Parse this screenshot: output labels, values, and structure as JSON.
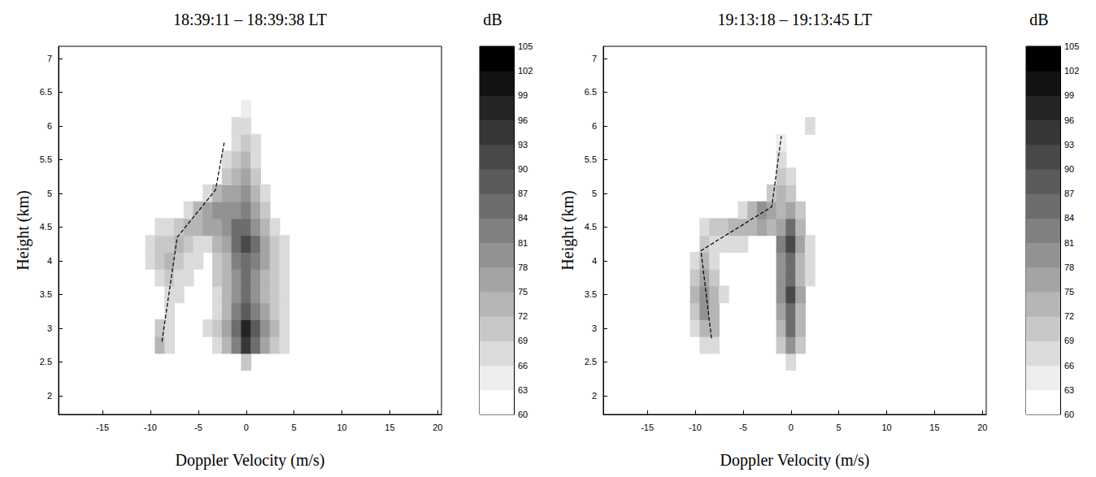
{
  "chart_data": [
    {
      "type": "heatmap",
      "title": "18:39:11 – 18:39:38 LT",
      "x_label": "Doppler Velocity (m/s)",
      "y_label": "Height (km)",
      "xlim": [
        -19.6,
        20.4
      ],
      "ylim": [
        1.72,
        7.18
      ],
      "xticks": [
        -15,
        -10,
        -5,
        0,
        5,
        10,
        15,
        20
      ],
      "yticks": [
        2,
        2.5,
        3,
        3.5,
        4,
        4.5,
        5,
        5.5,
        6,
        6.5,
        7
      ],
      "grid": false,
      "colorbar": {
        "label": "dB",
        "range": [
          60,
          105
        ],
        "ticks": [
          60,
          63,
          66,
          69,
          72,
          75,
          78,
          81,
          84,
          87,
          90,
          93,
          96,
          99,
          102,
          105
        ]
      },
      "cells": [
        [
          0,
          2.5,
          69
        ],
        [
          -9,
          2.75,
          72
        ],
        [
          -8,
          2.75,
          66
        ],
        [
          -3,
          2.75,
          66
        ],
        [
          -2,
          2.75,
          72
        ],
        [
          -1,
          2.75,
          81
        ],
        [
          0,
          2.75,
          93
        ],
        [
          1,
          2.75,
          84
        ],
        [
          2,
          2.75,
          75
        ],
        [
          3,
          2.75,
          69
        ],
        [
          4,
          2.75,
          66
        ],
        [
          -9,
          3,
          69
        ],
        [
          -8,
          3,
          66
        ],
        [
          -4,
          3,
          66
        ],
        [
          -3,
          3,
          69
        ],
        [
          -2,
          3,
          75
        ],
        [
          -1,
          3,
          84
        ],
        [
          0,
          3,
          96
        ],
        [
          1,
          3,
          87
        ],
        [
          2,
          3,
          78
        ],
        [
          3,
          3,
          72
        ],
        [
          4,
          3,
          66
        ],
        [
          -8,
          3.25,
          66
        ],
        [
          -3,
          3.25,
          66
        ],
        [
          -2,
          3.25,
          72
        ],
        [
          -1,
          3.25,
          81
        ],
        [
          0,
          3.25,
          87
        ],
        [
          1,
          3.25,
          81
        ],
        [
          2,
          3.25,
          75
        ],
        [
          3,
          3.25,
          69
        ],
        [
          4,
          3.25,
          66
        ],
        [
          -8,
          3.5,
          66
        ],
        [
          -7,
          3.5,
          66
        ],
        [
          -3,
          3.5,
          66
        ],
        [
          -2,
          3.5,
          72
        ],
        [
          -1,
          3.5,
          78
        ],
        [
          0,
          3.5,
          84
        ],
        [
          1,
          3.5,
          78
        ],
        [
          2,
          3.5,
          72
        ],
        [
          3,
          3.5,
          69
        ],
        [
          4,
          3.5,
          66
        ],
        [
          -9,
          3.75,
          66
        ],
        [
          -8,
          3.75,
          69
        ],
        [
          -7,
          3.75,
          66
        ],
        [
          -6,
          3.75,
          66
        ],
        [
          -3,
          3.75,
          69
        ],
        [
          -2,
          3.75,
          72
        ],
        [
          -1,
          3.75,
          78
        ],
        [
          0,
          3.75,
          84
        ],
        [
          1,
          3.75,
          78
        ],
        [
          2,
          3.75,
          72
        ],
        [
          3,
          3.75,
          69
        ],
        [
          4,
          3.75,
          66
        ],
        [
          -10,
          4,
          66
        ],
        [
          -9,
          4,
          69
        ],
        [
          -8,
          4,
          72
        ],
        [
          -7,
          4,
          69
        ],
        [
          -6,
          4,
          66
        ],
        [
          -5,
          4,
          66
        ],
        [
          -3,
          4,
          69
        ],
        [
          -2,
          4,
          72
        ],
        [
          -1,
          4,
          81
        ],
        [
          0,
          4,
          84
        ],
        [
          1,
          4,
          81
        ],
        [
          2,
          4,
          75
        ],
        [
          3,
          4,
          69
        ],
        [
          4,
          4,
          66
        ],
        [
          -10,
          4.25,
          66
        ],
        [
          -9,
          4.25,
          69
        ],
        [
          -8,
          4.25,
          69
        ],
        [
          -7,
          4.25,
          72
        ],
        [
          -6,
          4.25,
          69
        ],
        [
          -5,
          4.25,
          66
        ],
        [
          -4,
          4.25,
          66
        ],
        [
          -3,
          4.25,
          72
        ],
        [
          -2,
          4.25,
          75
        ],
        [
          -1,
          4.25,
          84
        ],
        [
          0,
          4.25,
          90
        ],
        [
          1,
          4.25,
          84
        ],
        [
          2,
          4.25,
          75
        ],
        [
          3,
          4.25,
          69
        ],
        [
          4,
          4.25,
          66
        ],
        [
          -9,
          4.5,
          66
        ],
        [
          -8,
          4.5,
          66
        ],
        [
          -7,
          4.5,
          69
        ],
        [
          -6,
          4.5,
          72
        ],
        [
          -5,
          4.5,
          72
        ],
        [
          -4,
          4.5,
          75
        ],
        [
          -3,
          4.5,
          75
        ],
        [
          -2,
          4.5,
          78
        ],
        [
          -1,
          4.5,
          84
        ],
        [
          0,
          4.5,
          84
        ],
        [
          1,
          4.5,
          78
        ],
        [
          2,
          4.5,
          72
        ],
        [
          3,
          4.5,
          66
        ],
        [
          -6,
          4.75,
          66
        ],
        [
          -5,
          4.75,
          72
        ],
        [
          -4,
          4.75,
          75
        ],
        [
          -3,
          4.75,
          78
        ],
        [
          -2,
          4.75,
          78
        ],
        [
          -1,
          4.75,
          78
        ],
        [
          0,
          4.75,
          81
        ],
        [
          1,
          4.75,
          75
        ],
        [
          2,
          4.75,
          69
        ],
        [
          -4,
          5,
          66
        ],
        [
          -3,
          5,
          72
        ],
        [
          -2,
          5,
          75
        ],
        [
          -1,
          5,
          75
        ],
        [
          0,
          5,
          78
        ],
        [
          1,
          5,
          72
        ],
        [
          2,
          5,
          66
        ],
        [
          -2,
          5.25,
          69
        ],
        [
          -1,
          5.25,
          72
        ],
        [
          0,
          5.25,
          75
        ],
        [
          1,
          5.25,
          69
        ],
        [
          -2,
          5.5,
          66
        ],
        [
          -1,
          5.5,
          69
        ],
        [
          0,
          5.5,
          72
        ],
        [
          1,
          5.5,
          66
        ],
        [
          -1,
          5.75,
          66
        ],
        [
          0,
          5.75,
          69
        ],
        [
          1,
          5.75,
          66
        ],
        [
          -1,
          6,
          66
        ],
        [
          0,
          6,
          66
        ],
        [
          0,
          6.25,
          63
        ]
      ],
      "dashed_line": {
        "x": [
          -8.8,
          -7.2,
          -3.2,
          -2.3
        ],
        "y": [
          2.8,
          4.35,
          5.05,
          5.75
        ],
        "line_style": "dashed",
        "color": "#000000"
      }
    },
    {
      "type": "heatmap",
      "title": "19:13:18 – 19:13:45 LT",
      "x_label": "Doppler Velocity (m/s)",
      "y_label": "Height (km)",
      "xlim": [
        -19.6,
        20.4
      ],
      "ylim": [
        1.72,
        7.18
      ],
      "xticks": [
        -15,
        -10,
        -5,
        0,
        5,
        10,
        15,
        20
      ],
      "yticks": [
        2,
        2.5,
        3,
        3.5,
        4,
        4.5,
        5,
        5.5,
        6,
        6.5,
        7
      ],
      "grid": false,
      "colorbar": {
        "label": "dB",
        "range": [
          60,
          105
        ],
        "ticks": [
          60,
          63,
          66,
          69,
          72,
          75,
          78,
          81,
          84,
          87,
          90,
          93,
          96,
          99,
          102,
          105
        ]
      },
      "cells": [
        [
          0,
          2.5,
          66
        ],
        [
          -9,
          2.75,
          66
        ],
        [
          -8,
          2.75,
          66
        ],
        [
          -1,
          2.75,
          69
        ],
        [
          0,
          2.75,
          78
        ],
        [
          1,
          2.75,
          69
        ],
        [
          -10,
          3,
          66
        ],
        [
          -9,
          3,
          72
        ],
        [
          -8,
          3,
          72
        ],
        [
          -1,
          3,
          72
        ],
        [
          0,
          3,
          84
        ],
        [
          1,
          3,
          72
        ],
        [
          -10,
          3.25,
          69
        ],
        [
          -9,
          3.25,
          78
        ],
        [
          -8,
          3.25,
          72
        ],
        [
          -1,
          3.25,
          75
        ],
        [
          0,
          3.25,
          84
        ],
        [
          1,
          3.25,
          72
        ],
        [
          -10,
          3.5,
          72
        ],
        [
          -9,
          3.5,
          78
        ],
        [
          -8,
          3.5,
          72
        ],
        [
          -7,
          3.5,
          66
        ],
        [
          -1,
          3.5,
          78
        ],
        [
          0,
          3.5,
          90
        ],
        [
          1,
          3.5,
          75
        ],
        [
          -10,
          3.75,
          69
        ],
        [
          -9,
          3.75,
          75
        ],
        [
          -8,
          3.75,
          69
        ],
        [
          -1,
          3.75,
          78
        ],
        [
          0,
          3.75,
          84
        ],
        [
          1,
          3.75,
          72
        ],
        [
          2,
          3.75,
          66
        ],
        [
          -10,
          4,
          66
        ],
        [
          -9,
          4,
          72
        ],
        [
          -8,
          4,
          66
        ],
        [
          -1,
          4,
          78
        ],
        [
          0,
          4,
          84
        ],
        [
          1,
          4,
          72
        ],
        [
          2,
          4,
          66
        ],
        [
          -9,
          4.25,
          69
        ],
        [
          -8,
          4.25,
          66
        ],
        [
          -7,
          4.25,
          66
        ],
        [
          -6,
          4.25,
          66
        ],
        [
          -5,
          4.25,
          66
        ],
        [
          -1,
          4.25,
          81
        ],
        [
          0,
          4.25,
          90
        ],
        [
          1,
          4.25,
          75
        ],
        [
          2,
          4.25,
          66
        ],
        [
          -9,
          4.5,
          66
        ],
        [
          -8,
          4.5,
          69
        ],
        [
          -7,
          4.5,
          69
        ],
        [
          -6,
          4.5,
          72
        ],
        [
          -5,
          4.5,
          72
        ],
        [
          -4,
          4.5,
          72
        ],
        [
          -3,
          4.5,
          75
        ],
        [
          -2,
          4.5,
          72
        ],
        [
          -1,
          4.5,
          75
        ],
        [
          0,
          4.5,
          84
        ],
        [
          1,
          4.5,
          72
        ],
        [
          -5,
          4.75,
          66
        ],
        [
          -4,
          4.75,
          72
        ],
        [
          -3,
          4.75,
          78
        ],
        [
          -2,
          4.75,
          75
        ],
        [
          -1,
          4.75,
          72
        ],
        [
          0,
          4.75,
          75
        ],
        [
          1,
          4.75,
          69
        ],
        [
          -2,
          5,
          69
        ],
        [
          -1,
          5,
          72
        ],
        [
          0,
          5,
          69
        ],
        [
          -1,
          5.25,
          69
        ],
        [
          0,
          5.25,
          66
        ],
        [
          -1,
          5.5,
          66
        ],
        [
          -1,
          5.75,
          63
        ],
        [
          2,
          6,
          66
        ]
      ],
      "dashed_line": {
        "x": [
          -8.3,
          -9.4,
          -2.0,
          -1.0
        ],
        "y": [
          2.85,
          4.15,
          4.8,
          5.85
        ],
        "line_style": "dashed",
        "color": "#000000"
      }
    }
  ]
}
